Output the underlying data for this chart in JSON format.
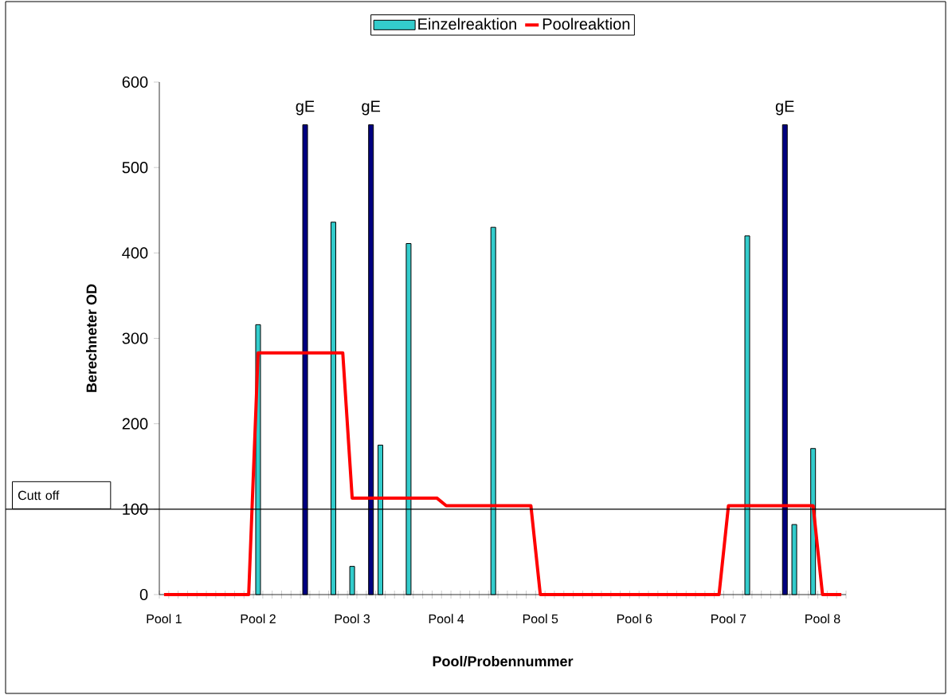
{
  "chart_data": {
    "type": "bar",
    "xlabel": "Pool/Probennummer",
    "ylabel": "Berechneter OD",
    "categories": [
      "Pool 1",
      null,
      null,
      null,
      null,
      null,
      null,
      null,
      null,
      null,
      "Pool 2",
      null,
      null,
      null,
      null,
      null,
      null,
      null,
      null,
      null,
      "Pool 3",
      null,
      null,
      null,
      null,
      null,
      null,
      null,
      null,
      null,
      "Pool 4",
      null,
      null,
      null,
      null,
      null,
      null,
      null,
      null,
      null,
      "Pool 5",
      null,
      null,
      null,
      null,
      null,
      null,
      null,
      null,
      null,
      "Pool 6",
      null,
      null,
      null,
      null,
      null,
      null,
      null,
      null,
      null,
      "Pool 7",
      null,
      null,
      null,
      null,
      null,
      null,
      null,
      null,
      null,
      "Pool 8",
      null,
      null
    ],
    "series": [
      {
        "name": "Einzelreaktion",
        "color": "#33cccc",
        "values": [
          null,
          null,
          null,
          null,
          null,
          null,
          null,
          null,
          null,
          null,
          316,
          null,
          null,
          null,
          null,
          550,
          null,
          null,
          436,
          null,
          33,
          null,
          550,
          175,
          null,
          null,
          411,
          null,
          null,
          null,
          null,
          null,
          null,
          null,
          null,
          430,
          null,
          null,
          null,
          null,
          null,
          null,
          null,
          null,
          null,
          null,
          null,
          null,
          null,
          null,
          null,
          null,
          null,
          null,
          null,
          null,
          null,
          null,
          null,
          null,
          null,
          null,
          420,
          null,
          null,
          null,
          550,
          82,
          null,
          171,
          null,
          null,
          null
        ],
        "colors": [
          "#33cccc",
          "#33cccc",
          "#33cccc",
          "#33cccc",
          "#33cccc",
          "#33cccc",
          "#33cccc",
          "#33cccc",
          "#33cccc",
          "#33cccc",
          "#33cccc",
          "#33cccc",
          "#33cccc",
          "#33cccc",
          "#33cccc",
          "#000080",
          "#33cccc",
          "#33cccc",
          "#33cccc",
          "#33cccc",
          "#33cccc",
          "#33cccc",
          "#000080",
          "#33cccc",
          "#33cccc",
          "#33cccc",
          "#33cccc",
          "#33cccc",
          "#33cccc",
          "#33cccc",
          "#33cccc",
          "#33cccc",
          "#33cccc",
          "#33cccc",
          "#33cccc",
          "#33cccc",
          "#33cccc",
          "#33cccc",
          "#33cccc",
          "#33cccc",
          "#33cccc",
          "#33cccc",
          "#33cccc",
          "#33cccc",
          "#33cccc",
          "#33cccc",
          "#33cccc",
          "#33cccc",
          "#33cccc",
          "#33cccc",
          "#33cccc",
          "#33cccc",
          "#33cccc",
          "#33cccc",
          "#33cccc",
          "#33cccc",
          "#33cccc",
          "#33cccc",
          "#33cccc",
          "#33cccc",
          "#33cccc",
          "#33cccc",
          "#33cccc",
          "#33cccc",
          "#33cccc",
          "#33cccc",
          "#000080",
          "#33cccc",
          "#33cccc",
          "#33cccc",
          "#33cccc",
          "#33cccc",
          "#33cccc"
        ],
        "value_labels": [
          null,
          null,
          null,
          null,
          null,
          null,
          null,
          null,
          null,
          null,
          null,
          null,
          null,
          null,
          null,
          "gE",
          null,
          null,
          null,
          null,
          null,
          null,
          "gE",
          null,
          null,
          null,
          null,
          null,
          null,
          null,
          null,
          null,
          null,
          null,
          null,
          null,
          null,
          null,
          null,
          null,
          null,
          null,
          null,
          null,
          null,
          null,
          null,
          null,
          null,
          null,
          null,
          null,
          null,
          null,
          null,
          null,
          null,
          null,
          null,
          null,
          null,
          null,
          null,
          null,
          null,
          null,
          "gE",
          null,
          null,
          null,
          null,
          null,
          null
        ]
      },
      {
        "name": "Poolreaktion",
        "type": "line",
        "color": "#ff0000",
        "values": [
          0,
          0,
          0,
          0,
          0,
          0,
          0,
          0,
          0,
          0,
          283,
          283,
          283,
          283,
          283,
          283,
          283,
          283,
          283,
          283,
          113,
          113,
          113,
          113,
          113,
          113,
          113,
          113,
          113,
          113,
          104,
          104,
          104,
          104,
          104,
          104,
          104,
          104,
          104,
          104,
          0,
          0,
          0,
          0,
          0,
          0,
          0,
          0,
          0,
          0,
          0,
          0,
          0,
          0,
          0,
          0,
          0,
          0,
          0,
          0,
          104,
          104,
          104,
          104,
          104,
          104,
          104,
          104,
          104,
          104,
          0,
          0,
          0
        ]
      }
    ],
    "ylim": [
      0,
      600
    ],
    "yticks": [
      0,
      100,
      200,
      300,
      400,
      500,
      600
    ],
    "ref_lines": [
      {
        "axis": "y",
        "value": 100,
        "label": "Cutt off",
        "color": "#000000"
      }
    ],
    "legend": "top",
    "grid": false
  }
}
